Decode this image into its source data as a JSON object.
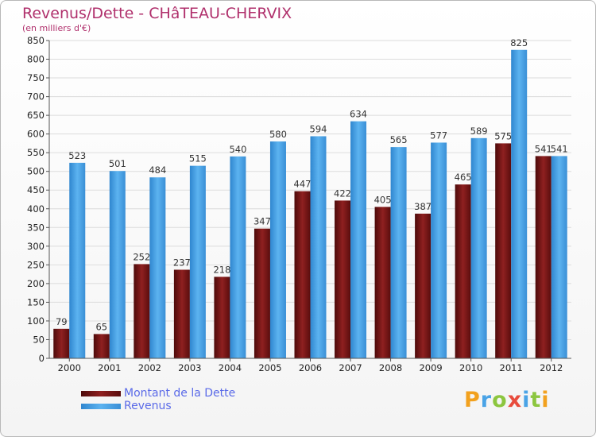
{
  "header": {
    "title": "Revenus/Dette - CHâTEAU-CHERVIX",
    "subtitle": "(en milliers d'€)"
  },
  "legend": {
    "items": [
      {
        "label": "Montant de la Dette",
        "color": "#7a1414"
      },
      {
        "label": "Revenus",
        "color": "#4aa3e6"
      }
    ]
  },
  "logo": {
    "text": "Proxiti",
    "letters": [
      "P",
      "r",
      "o",
      "x",
      "i",
      "t",
      "i"
    ]
  },
  "chart_data": {
    "type": "bar",
    "title": "Revenus/Dette - CHâTEAU-CHERVIX",
    "ylabel": "(en milliers d'€)",
    "xlabel": "",
    "categories": [
      "2000",
      "2001",
      "2002",
      "2003",
      "2004",
      "2005",
      "2006",
      "2007",
      "2008",
      "2009",
      "2010",
      "2011",
      "2012"
    ],
    "series": [
      {
        "name": "Montant de la Dette",
        "values": [
          79,
          65,
          252,
          237,
          218,
          347,
          447,
          422,
          405,
          387,
          465,
          575,
          541
        ],
        "color": "#7a1414"
      },
      {
        "name": "Revenus",
        "values": [
          523,
          501,
          484,
          515,
          540,
          580,
          594,
          634,
          565,
          577,
          589,
          825,
          541
        ],
        "color": "#4aa3e6"
      }
    ],
    "ylim": [
      0,
      850
    ],
    "ytick_step": 50,
    "grid": true,
    "legend_position": "bottom-left"
  }
}
